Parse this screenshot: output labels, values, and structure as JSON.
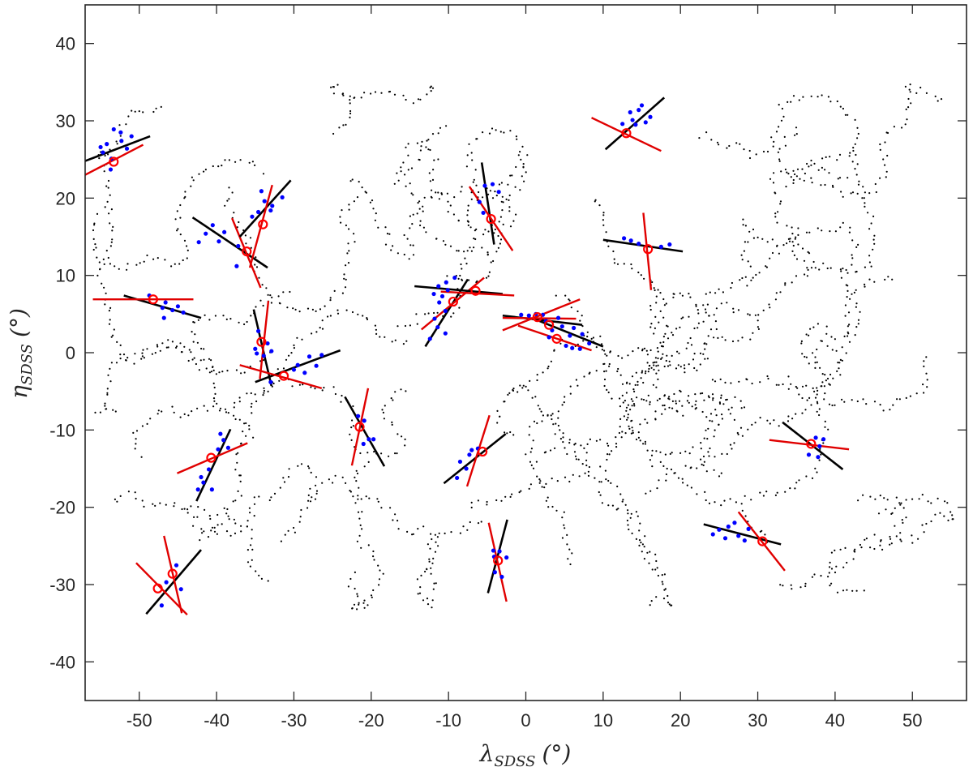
{
  "chart_data": {
    "type": "scatter",
    "xlabel": "λSDSS (°)",
    "ylabel": "ηSDSS (°)",
    "xlabel_parts": {
      "symbol": "λ",
      "sub": "SDSS",
      "unit": "(°)"
    },
    "ylabel_parts": {
      "symbol": "η",
      "sub": "SDSS",
      "unit": "(°)"
    },
    "xlim": [
      -57,
      57
    ],
    "ylim": [
      -45,
      45
    ],
    "xticks": [
      -50,
      -40,
      -30,
      -20,
      -10,
      0,
      10,
      20,
      30,
      40,
      50
    ],
    "yticks": [
      -40,
      -30,
      -20,
      -10,
      0,
      10,
      20,
      30,
      40
    ],
    "grid": false,
    "colors": {
      "background_points": "#000000",
      "member_points": "#0000ff",
      "group_center": "#ff0000",
      "black_axis": "#000000",
      "red_axis": "#e00000"
    },
    "groups": [
      {
        "center": [
          -53.3,
          24.7
        ],
        "black_ends": [
          [
            -57,
            24.8
          ],
          [
            -48.6,
            28.0
          ]
        ],
        "red_ends": [
          [
            -57,
            23.0
          ],
          [
            -49.5,
            26.9
          ]
        ],
        "members": [
          [
            -55,
            26.6
          ],
          [
            -54.2,
            27.0
          ],
          [
            -53.3,
            28.9
          ],
          [
            -52.4,
            28.5
          ],
          [
            -51.6,
            26.4
          ],
          [
            -53.6,
            25.1
          ],
          [
            -54.7,
            25.9
          ],
          [
            -52.3,
            27.4
          ],
          [
            -51.0,
            28.0
          ],
          [
            -53.7,
            23.7
          ]
        ]
      },
      {
        "center": [
          -36.1,
          13.1
        ],
        "black_ends": [
          [
            -43.1,
            17.5
          ],
          [
            -33.4,
            11.0
          ]
        ],
        "red_ends": [
          [
            -34.3,
            8.4
          ],
          [
            -38.0,
            17.4
          ]
        ],
        "members": [
          [
            -40.5,
            16.5
          ],
          [
            -39.7,
            14.4
          ],
          [
            -39.0,
            15.6
          ],
          [
            -41.4,
            15.4
          ],
          [
            -42.3,
            14.3
          ],
          [
            -37.4,
            11.2
          ],
          [
            -37.2,
            13.8
          ]
        ]
      },
      {
        "center": [
          -34.0,
          16.6
        ],
        "black_ends": [
          [
            -37.0,
            15.0
          ],
          [
            -30.4,
            22.3
          ]
        ],
        "red_ends": [
          [
            -35.7,
            11.0
          ],
          [
            -32.8,
            21.7
          ]
        ],
        "members": [
          [
            -34.6,
            18.2
          ],
          [
            -33.8,
            19.6
          ],
          [
            -32.8,
            19.0
          ],
          [
            -31.5,
            20.1
          ],
          [
            -34.2,
            20.9
          ],
          [
            -35.4,
            17.6
          ],
          [
            -33.0,
            18.4
          ]
        ]
      },
      {
        "center": [
          -48.2,
          6.9
        ],
        "black_ends": [
          [
            -52.0,
            7.4
          ],
          [
            -42.0,
            4.5
          ]
        ],
        "red_ends": [
          [
            -56.0,
            6.9
          ],
          [
            -43.0,
            6.9
          ]
        ],
        "members": [
          [
            -46.6,
            6.5
          ],
          [
            -45.7,
            5.5
          ],
          [
            -45.0,
            6.0
          ],
          [
            -44.3,
            5.2
          ],
          [
            -47.0,
            5.8
          ],
          [
            -48.7,
            7.4
          ],
          [
            -46.8,
            4.5
          ]
        ]
      },
      {
        "center": [
          -34.2,
          1.4
        ],
        "black_ends": [
          [
            -35.2,
            5.6
          ],
          [
            -32.9,
            -4.3
          ]
        ],
        "red_ends": [
          [
            -33.3,
            6.7
          ],
          [
            -34.4,
            -3.4
          ]
        ],
        "members": [
          [
            -35.0,
            0.5
          ],
          [
            -33.9,
            -0.4
          ],
          [
            -34.6,
            2.8
          ],
          [
            -33.4,
            1.2
          ],
          [
            -34.8,
            -0.1
          ],
          [
            -32.9,
            0.2
          ]
        ]
      },
      {
        "center": [
          -31.3,
          -3.0
        ],
        "black_ends": [
          [
            -35.0,
            -3.8
          ],
          [
            -24.0,
            0.3
          ]
        ],
        "red_ends": [
          [
            -37.0,
            -1.6
          ],
          [
            -26.4,
            -4.6
          ]
        ],
        "members": [
          [
            -28.0,
            -0.5
          ],
          [
            -27.1,
            -1.7
          ],
          [
            -29.5,
            -1.6
          ],
          [
            -26.4,
            -0.3
          ],
          [
            -28.6,
            -2.6
          ],
          [
            -33.0,
            -3.8
          ],
          [
            -30.0,
            -2.2
          ]
        ]
      },
      {
        "center": [
          -21.5,
          -9.6
        ],
        "black_ends": [
          [
            -23.4,
            -5.7
          ],
          [
            -18.3,
            -14.7
          ]
        ],
        "red_ends": [
          [
            -20.4,
            -4.6
          ],
          [
            -22.5,
            -14.6
          ]
        ],
        "members": [
          [
            -20.9,
            -8.8
          ],
          [
            -20.3,
            -11.2
          ],
          [
            -21.0,
            -11.8
          ],
          [
            -19.7,
            -11.2
          ],
          [
            -21.7,
            -8.2
          ]
        ]
      },
      {
        "center": [
          -40.7,
          -13.6
        ],
        "black_ends": [
          [
            -42.6,
            -19.2
          ],
          [
            -38.2,
            -9.9
          ]
        ],
        "red_ends": [
          [
            -45.1,
            -15.6
          ],
          [
            -36.0,
            -11.7
          ]
        ],
        "members": [
          [
            -41.7,
            -16.8
          ],
          [
            -42.4,
            -17.7
          ],
          [
            -42.0,
            -16.1
          ],
          [
            -41.0,
            -15.1
          ],
          [
            -39.8,
            -12.5
          ],
          [
            -39.1,
            -11.3
          ],
          [
            -40.6,
            -17.7
          ],
          [
            -39.5,
            -10.5
          ],
          [
            -38.5,
            -12.3
          ]
        ]
      },
      {
        "center": [
          -47.6,
          -30.5
        ],
        "black_ends": [
          [
            -49.1,
            -33.8
          ],
          [
            -42.0,
            -25.5
          ]
        ],
        "red_ends": [
          [
            -50.4,
            -27.2
          ],
          [
            -43.8,
            -33.9
          ]
        ],
        "members": [
          [
            -46.5,
            -29.7
          ],
          [
            -47.1,
            -32.7
          ],
          [
            -45.2,
            -27.5
          ]
        ]
      },
      {
        "center": [
          -45.7,
          -28.6
        ],
        "black_ends": null,
        "red_ends": [
          [
            -46.8,
            -23.7
          ],
          [
            -44.5,
            -33.7
          ]
        ],
        "members": [
          [
            -44.6,
            -30.6
          ]
        ]
      },
      {
        "center": [
          -9.4,
          6.6
        ],
        "black_ends": [
          [
            -13.0,
            0.8
          ],
          [
            -7.5,
            9.5
          ]
        ],
        "red_ends": [
          [
            -13.5,
            3.0
          ],
          [
            -5.4,
            9.7
          ]
        ],
        "members": [
          [
            -11.2,
            6.5
          ],
          [
            -10.4,
            5.4
          ],
          [
            -11.8,
            4.4
          ],
          [
            -10.8,
            7.3
          ],
          [
            -9.2,
            9.7
          ],
          [
            -11.4,
            3.3
          ],
          [
            -12.4,
            1.8
          ],
          [
            -10.1,
            8.1
          ],
          [
            -11.3,
            8.6
          ],
          [
            -10.4,
            2.5
          ]
        ]
      },
      {
        "center": [
          -6.5,
          8.0
        ],
        "black_ends": [
          [
            -14.4,
            8.6
          ],
          [
            -3.0,
            7.6
          ]
        ],
        "red_ends": [
          [
            -11.0,
            7.9
          ],
          [
            -1.5,
            7.4
          ]
        ],
        "members": [
          [
            -11.9,
            7.6
          ],
          [
            -10.3,
            9.1
          ]
        ]
      },
      {
        "center": [
          -4.5,
          17.3
        ],
        "black_ends": [
          [
            -5.7,
            24.6
          ],
          [
            -4.1,
            14.0
          ]
        ],
        "red_ends": [
          [
            -7.3,
            21.5
          ],
          [
            -1.7,
            13.2
          ]
        ],
        "members": [
          [
            -5.3,
            21.6
          ],
          [
            -4.3,
            21.8
          ],
          [
            -6.0,
            19.5
          ],
          [
            -3.5,
            20.8
          ],
          [
            -5.5,
            18.1
          ]
        ]
      },
      {
        "center": [
          1.5,
          4.6
        ],
        "black_ends": [
          [
            -3.0,
            4.8
          ],
          [
            7.3,
            3.6
          ]
        ],
        "red_ends": [
          [
            -3.0,
            4.5
          ],
          [
            6.5,
            4.4
          ]
        ],
        "members": [
          [
            0.4,
            4.8
          ],
          [
            1.3,
            5.0
          ],
          [
            2.2,
            4.9
          ],
          [
            -0.6,
            4.9
          ]
        ]
      },
      {
        "center": [
          3.0,
          3.6
        ],
        "black_ends": [
          [
            1.5,
            4.2
          ],
          [
            10.0,
            0.8
          ]
        ],
        "red_ends": [
          [
            -3.0,
            2.9
          ],
          [
            7.0,
            6.9
          ]
        ],
        "members": [
          [
            3.4,
            2.9
          ],
          [
            4.7,
            3.4
          ],
          [
            5.7,
            2.2
          ],
          [
            6.2,
            3.2
          ],
          [
            7.3,
            2.4
          ],
          [
            4.2,
            4.5
          ],
          [
            2.6,
            4.1
          ],
          [
            8.2,
            1.2
          ]
        ]
      },
      {
        "center": [
          4.0,
          1.8
        ],
        "black_ends": null,
        "red_ends": [
          [
            -1.0,
            3.5
          ],
          [
            8.5,
            0.3
          ]
        ],
        "members": [
          [
            6.0,
            0.6
          ],
          [
            3.0,
            2.0
          ],
          [
            5.2,
            0.9
          ],
          [
            7.0,
            0.5
          ]
        ]
      },
      {
        "center": [
          -5.6,
          -12.8
        ],
        "black_ends": [
          [
            -10.6,
            -16.9
          ],
          [
            -2.6,
            -10.5
          ]
        ],
        "red_ends": [
          [
            -4.7,
            -8.1
          ],
          [
            -7.6,
            -17.3
          ]
        ],
        "members": [
          [
            -7.3,
            -13.2
          ],
          [
            -8.5,
            -14.1
          ],
          [
            -7.0,
            -12.6
          ],
          [
            -8.9,
            -16.2
          ],
          [
            -6.2,
            -12.4
          ],
          [
            -7.7,
            -15.0
          ]
        ]
      },
      {
        "center": [
          -3.6,
          -26.9
        ],
        "black_ends": [
          [
            -4.9,
            -31.1
          ],
          [
            -2.4,
            -21.6
          ]
        ],
        "red_ends": [
          [
            -4.8,
            -22.0
          ],
          [
            -2.5,
            -32.2
          ]
        ],
        "members": [
          [
            -4.2,
            -25.6
          ],
          [
            -3.4,
            -25.7
          ],
          [
            -2.5,
            -26.5
          ],
          [
            -4.0,
            -28.4
          ],
          [
            -3.1,
            -29.0
          ],
          [
            -4.1,
            -26.4
          ]
        ]
      },
      {
        "center": [
          13.0,
          28.4
        ],
        "black_ends": [
          [
            10.3,
            26.3
          ],
          [
            17.9,
            33.0
          ]
        ],
        "red_ends": [
          [
            8.5,
            30.4
          ],
          [
            17.5,
            26.1
          ]
        ],
        "members": [
          [
            14.2,
            29.5
          ],
          [
            13.5,
            31.1
          ],
          [
            14.6,
            31.4
          ],
          [
            15.5,
            29.8
          ],
          [
            16.1,
            30.5
          ],
          [
            15.0,
            32.0
          ],
          [
            12.5,
            29.6
          ],
          [
            13.8,
            30.1
          ]
        ]
      },
      {
        "center": [
          15.8,
          13.4
        ],
        "black_ends": [
          [
            10.0,
            14.6
          ],
          [
            20.3,
            13.1
          ]
        ],
        "red_ends": [
          [
            15.2,
            18.1
          ],
          [
            16.2,
            8.1
          ]
        ],
        "members": [
          [
            12.7,
            14.8
          ],
          [
            14.6,
            14.1
          ],
          [
            17.5,
            13.7
          ],
          [
            18.6,
            14.0
          ],
          [
            13.6,
            14.5
          ]
        ]
      },
      {
        "center": [
          36.9,
          -11.8
        ],
        "black_ends": [
          [
            33.2,
            -9.0
          ],
          [
            41.0,
            -15.1
          ]
        ],
        "red_ends": [
          [
            31.5,
            -11.3
          ],
          [
            41.8,
            -12.5
          ]
        ],
        "members": [
          [
            37.5,
            -11.0
          ],
          [
            38.5,
            -11.2
          ],
          [
            36.6,
            -13.2
          ],
          [
            37.8,
            -13.5
          ],
          [
            38.0,
            -12.1
          ]
        ]
      },
      {
        "center": [
          30.6,
          -24.4
        ],
        "black_ends": [
          [
            23.0,
            -22.2
          ],
          [
            33.0,
            -24.8
          ]
        ],
        "red_ends": [
          [
            27.5,
            -20.6
          ],
          [
            33.5,
            -28.2
          ]
        ],
        "members": [
          [
            25.0,
            -22.9
          ],
          [
            26.2,
            -22.5
          ],
          [
            27.5,
            -23.7
          ],
          [
            25.8,
            -24.0
          ],
          [
            28.3,
            -24.3
          ],
          [
            27.0,
            -22.0
          ],
          [
            28.8,
            -22.8
          ],
          [
            24.2,
            -23.5
          ]
        ]
      }
    ]
  }
}
